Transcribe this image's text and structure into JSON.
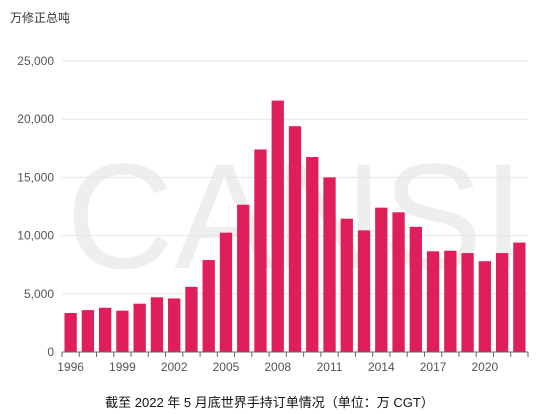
{
  "chart_data": {
    "type": "bar",
    "ylabel": "万修正总吨",
    "caption": "截至 2022 年 5 月底世界手持订单情况（单位：万 CGT）",
    "watermark": "CANSI",
    "categories": [
      "1996",
      "1997",
      "1998",
      "1999",
      "2000",
      "2001",
      "2002",
      "2003",
      "2004",
      "2005",
      "2006",
      "2007",
      "2008",
      "2009",
      "2010",
      "2011",
      "2012",
      "2013",
      "2014",
      "2015",
      "2016",
      "2017",
      "2018",
      "2019",
      "2020",
      "2021",
      "2022"
    ],
    "x_tick_labels": [
      "1996",
      "1999",
      "2002",
      "2005",
      "2008",
      "2011",
      "2014",
      "2017",
      "2020"
    ],
    "values": [
      3350,
      3600,
      3800,
      3550,
      4150,
      4700,
      4600,
      5600,
      7900,
      10250,
      12650,
      17400,
      21600,
      19400,
      16750,
      15000,
      11450,
      10450,
      12400,
      12000,
      10750,
      8650,
      8700,
      8500,
      7800,
      8500,
      9400
    ],
    "y_ticks": [
      "0",
      "5,000",
      "10,000",
      "15,000",
      "20,000",
      "25,000"
    ],
    "ylim": [
      0,
      25000
    ],
    "grid": true,
    "bar_color": "#e01e5a"
  }
}
